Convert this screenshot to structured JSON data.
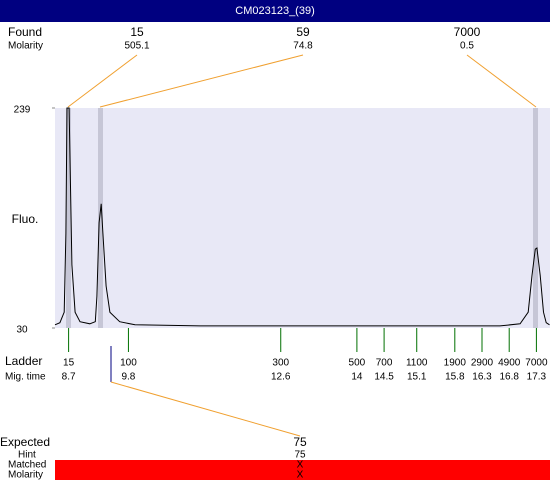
{
  "header": {
    "title": "CM023123_(39)"
  },
  "chart_data": {
    "type": "line",
    "y_label": "Fluo.",
    "color": "#000000",
    "x": [
      8.45,
      8.54,
      8.62,
      8.65,
      8.67,
      8.71,
      8.73,
      8.76,
      8.82,
      8.91,
      9.09,
      9.19,
      9.22,
      9.26,
      9.3,
      9.33,
      9.39,
      9.46,
      9.64,
      9.92,
      11.12,
      12.95,
      14.79,
      16.63,
      17.0,
      17.15,
      17.22,
      17.28,
      17.31,
      17.37,
      17.43,
      17.48,
      17.54
    ],
    "y": [
      33,
      35,
      45,
      120,
      239,
      239,
      180,
      90,
      45,
      36,
      34,
      36,
      60,
      130,
      148,
      120,
      70,
      45,
      36,
      33,
      32,
      32,
      32,
      32,
      34,
      45,
      80,
      105,
      106,
      80,
      45,
      35,
      33
    ],
    "xlim": [
      8.45,
      17.55
    ],
    "ylim": [
      30,
      239
    ],
    "yticks": [
      30,
      239
    ]
  },
  "found": {
    "label": "Found",
    "sub_label": "Molarity",
    "peaks": [
      {
        "size": 15,
        "molarity": 505.1
      },
      {
        "size": 59,
        "molarity": 74.8
      },
      {
        "size": 7000,
        "molarity": 0.5
      }
    ]
  },
  "ladder": {
    "label": "Ladder",
    "sub_label": "Mig. time",
    "sizes": [
      15,
      100,
      300,
      500,
      700,
      1100,
      1900,
      2900,
      4900,
      7000
    ],
    "times": [
      8.7,
      9.8,
      12.6,
      14,
      14.5,
      15.1,
      15.8,
      16.3,
      16.8,
      17.3
    ]
  },
  "expected": {
    "label": "Expected",
    "value": 75,
    "hint_label": "Hint",
    "hint": 75,
    "matched_label": "Matched",
    "matched": "X",
    "molarity_label": "Molarity",
    "molarity": "X"
  }
}
